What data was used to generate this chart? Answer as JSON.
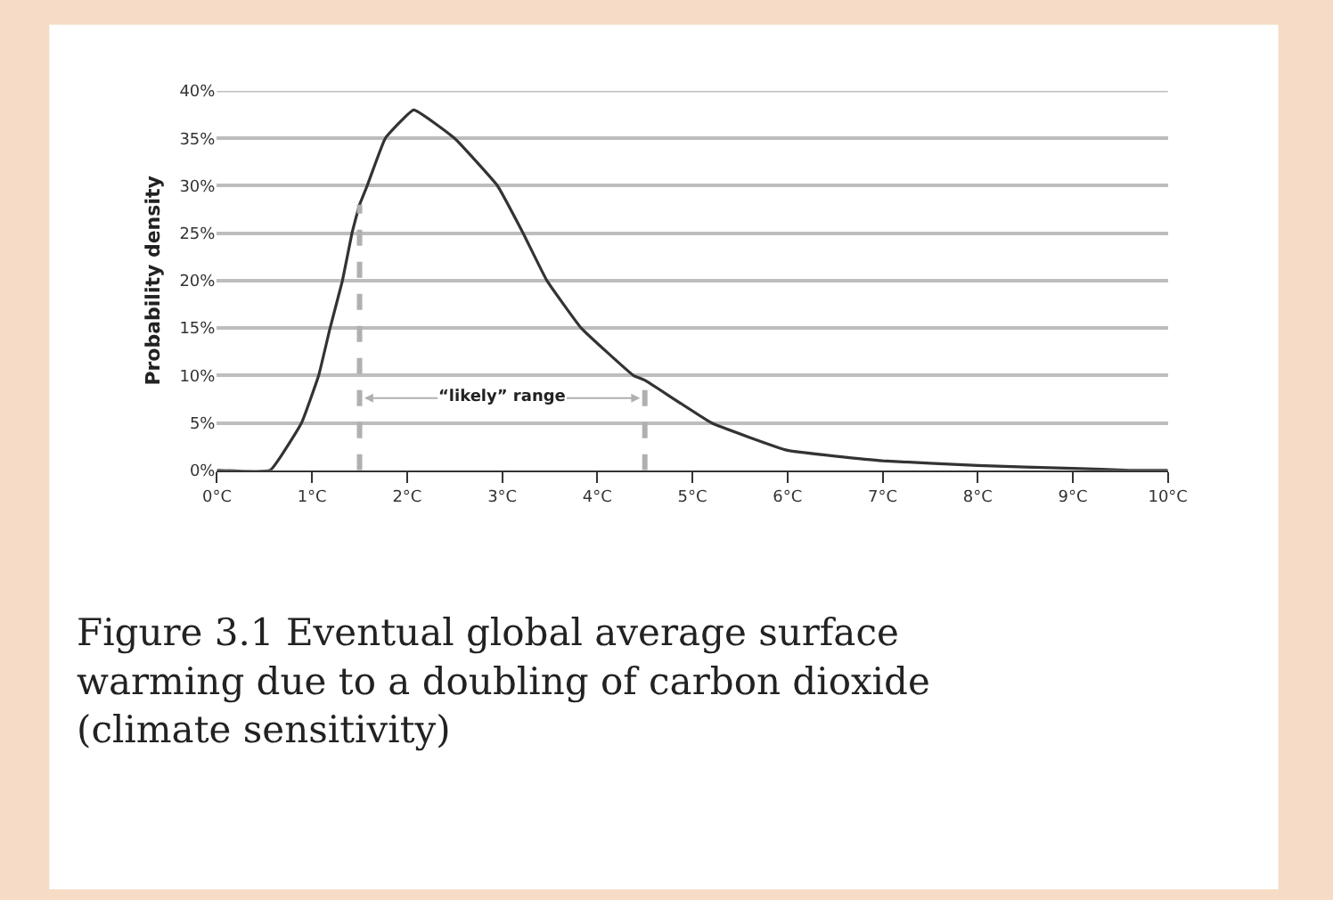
{
  "chart_data": {
    "type": "line",
    "ylabel": "Probability density",
    "color": "#333333",
    "x": [
      0,
      0.56,
      0.89,
      1.07,
      1.19,
      1.32,
      1.42,
      1.5,
      1.58,
      1.77,
      2.07,
      2.5,
      2.95,
      3.22,
      3.47,
      3.83,
      4.38,
      4.5,
      5.2,
      6,
      7,
      8,
      9,
      9.6,
      10
    ],
    "values": [
      0,
      0,
      5,
      10,
      15,
      20,
      25,
      28,
      30,
      35,
      38,
      35,
      30,
      25,
      20,
      15,
      10,
      9.5,
      5,
      2.1,
      1,
      0.5,
      0.2,
      0,
      0
    ],
    "xlim": [
      0,
      10
    ],
    "xticks": [
      {
        "value": 0,
        "label": "0°C"
      },
      {
        "value": 1,
        "label": "1°C"
      },
      {
        "value": 2,
        "label": "2°C"
      },
      {
        "value": 3,
        "label": "3°C"
      },
      {
        "value": 4,
        "label": "4°C"
      },
      {
        "value": 5,
        "label": "5°C"
      },
      {
        "value": 6,
        "label": "6°C"
      },
      {
        "value": 7,
        "label": "7°C"
      },
      {
        "value": 8,
        "label": "8°C"
      },
      {
        "value": 9,
        "label": "9°C"
      },
      {
        "value": 10,
        "label": "10°C"
      }
    ],
    "ylim": [
      0,
      40
    ],
    "yticks": [
      {
        "value": 0,
        "label": "0%"
      },
      {
        "value": 5,
        "label": "5%"
      },
      {
        "value": 10,
        "label": "10%"
      },
      {
        "value": 15,
        "label": "15%"
      },
      {
        "value": 20,
        "label": "20%"
      },
      {
        "value": 25,
        "label": "25%"
      },
      {
        "value": 30,
        "label": "30%"
      },
      {
        "value": 35,
        "label": "35%"
      },
      {
        "value": 40,
        "label": "40%"
      }
    ],
    "grid": "y",
    "legend": false,
    "marker": "none",
    "line_style": "solid",
    "ref_lines": [
      {
        "axis": "x",
        "value": 1.5,
        "color": "#b0b0b0",
        "line_style": "dashed",
        "label": "“likely” range"
      },
      {
        "axis": "x",
        "value": 4.5,
        "color": "#b0b0b0",
        "line_style": "dashed"
      }
    ],
    "annotations": [
      "Figure 3.1 Eventual global average surface warming due to a doubling of carbon dioxide (climate sensitivity)"
    ]
  }
}
